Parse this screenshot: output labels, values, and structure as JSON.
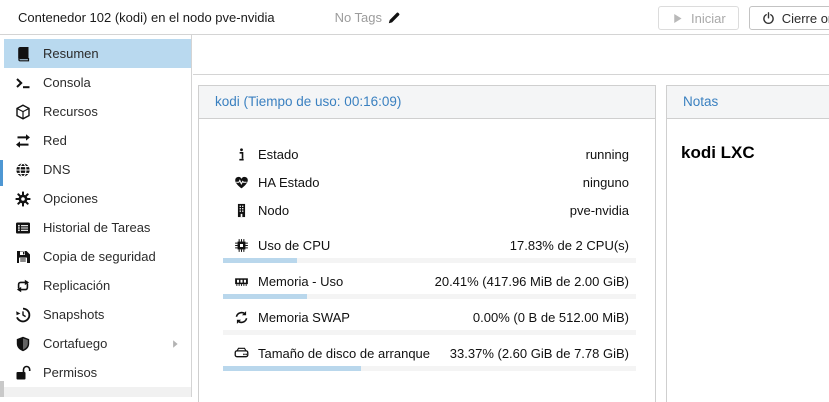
{
  "colors": {
    "selection_bg": "#b9d9ef",
    "panel_title": "#3a80c0",
    "progress_fill": "#b9d7ec",
    "progress_track": "#f4f4f4",
    "tree_marker": "#4e97d3",
    "border": "#d4d4d4"
  },
  "top_bar": {
    "title": "Contenedor 102 (kodi) en el nodo pve-nvidia",
    "tags_label": "No Tags",
    "tags_icon": "pencil-icon",
    "buttons": [
      {
        "label": "Iniciar",
        "icon": "play-icon",
        "disabled": true
      },
      {
        "label": "Cierre ordenado",
        "icon": "power-icon",
        "disabled": false
      }
    ]
  },
  "sidebar": {
    "items": [
      {
        "label": "Resumen",
        "icon": "book-icon",
        "selected": true
      },
      {
        "label": "Consola",
        "icon": "terminal-icon"
      },
      {
        "label": "Recursos",
        "icon": "cube-icon"
      },
      {
        "label": "Red",
        "icon": "exchange-arrows-icon"
      },
      {
        "label": "DNS",
        "icon": "globe-icon"
      },
      {
        "label": "Opciones",
        "icon": "gear-icon"
      },
      {
        "label": "Historial de Tareas",
        "icon": "task-list-icon"
      },
      {
        "label": "Copia de seguridad",
        "icon": "floppy-icon"
      },
      {
        "label": "Replicación",
        "icon": "replication-arrows-icon"
      },
      {
        "label": "Snapshots",
        "icon": "history-icon"
      },
      {
        "label": "Cortafuego",
        "icon": "shield-icon",
        "has_submenu": true
      },
      {
        "label": "Permisos",
        "icon": "unlock-icon"
      }
    ]
  },
  "status_panel": {
    "title": "kodi (Tiempo de uso: 00:16:09)",
    "rows": [
      {
        "icon": "info-icon",
        "label": "Estado",
        "value": "running"
      },
      {
        "icon": "heartbeat-icon",
        "label": "HA Estado",
        "value": "ninguno"
      },
      {
        "icon": "building-icon",
        "label": "Nodo",
        "value": "pve-nvidia"
      },
      {
        "icon": "cpu-icon",
        "label": "Uso de CPU",
        "value": "17.83% de 2 CPU(s)",
        "bar_pct": 17.83,
        "gap_before": true
      },
      {
        "icon": "memory-icon",
        "label": "Memoria - Uso",
        "value": "20.41% (417.96 MiB de 2.00 GiB)",
        "bar_pct": 20.41
      },
      {
        "icon": "swap-icon",
        "label": "Memoria SWAP",
        "value": "0.00% (0 B de 512.00 MiB)",
        "bar_pct": 0
      },
      {
        "icon": "disk-icon",
        "label": "Tamaño de disco de arranque",
        "value": "33.37% (2.60 GiB de 7.78 GiB)",
        "bar_pct": 33.37
      }
    ]
  },
  "notes_panel": {
    "title": "Notas",
    "content": "kodi LXC"
  }
}
